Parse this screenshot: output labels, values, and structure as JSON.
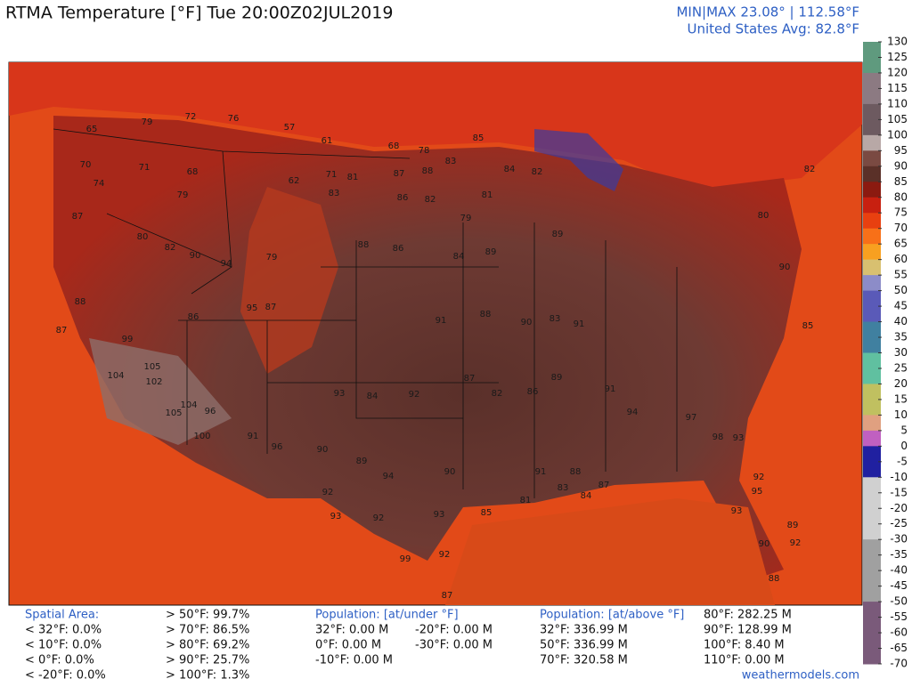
{
  "header": {
    "title": "RTMA Temperature [°F]  Tue 20:00Z02JUL2019",
    "minmax": "MIN|MAX 23.08° | 112.58°F",
    "average": "United States Avg: 82.8°F"
  },
  "colorbar": {
    "ticks": [
      130,
      125,
      120,
      115,
      110,
      105,
      100,
      95,
      90,
      85,
      80,
      75,
      70,
      65,
      60,
      55,
      50,
      45,
      40,
      35,
      30,
      25,
      20,
      15,
      10,
      5,
      0,
      -5,
      -10,
      -15,
      -20,
      -25,
      -30,
      -35,
      -40,
      -45,
      -50,
      -55,
      -60,
      -65,
      -70
    ]
  },
  "map_labels": [
    79,
    72,
    76,
    57,
    61,
    68,
    78,
    85,
    65,
    70,
    71,
    68,
    62,
    71,
    81,
    87,
    88,
    83,
    84,
    82,
    74,
    87,
    79,
    83,
    86,
    82,
    81,
    79,
    80,
    82,
    90,
    94,
    79,
    88,
    86,
    84,
    89,
    89,
    88,
    87,
    86,
    95,
    87,
    91,
    88,
    90,
    83,
    91,
    99,
    105,
    104,
    102,
    105,
    104,
    96,
    100,
    93,
    84,
    92,
    87,
    82,
    86,
    89,
    91,
    94,
    97,
    98,
    93,
    89,
    92,
    90,
    88,
    85,
    90,
    80,
    82,
    91,
    96,
    90,
    89,
    94,
    90,
    91,
    88,
    83,
    84,
    87,
    92,
    93,
    92,
    93,
    85,
    81,
    99,
    92,
    87,
    93,
    95,
    92
  ],
  "stats": {
    "spatial": {
      "heading": "Spatial Area:",
      "below": [
        "< 32°F: 0.0%",
        "< 10°F: 0.0%",
        "< 0°F: 0.0%",
        "< -20°F: 0.0%"
      ],
      "above": [
        "> 50°F: 99.7%",
        "> 70°F: 86.5%",
        "> 80°F: 69.2%",
        "> 90°F: 25.7%",
        "> 100°F: 1.3%"
      ]
    },
    "pop_under": {
      "heading": "Population: [at/under °F]",
      "col1": [
        "32°F: 0.00 M",
        "0°F: 0.00 M",
        "-10°F: 0.00 M"
      ],
      "col2": [
        "-20°F: 0.00 M",
        "-30°F: 0.00 M"
      ]
    },
    "pop_above": {
      "heading": "Population: [at/above °F]",
      "col1": [
        "32°F: 336.99 M",
        "50°F: 336.99 M",
        "70°F: 320.58 M"
      ],
      "col2": [
        "80°F: 282.25 M",
        "90°F: 128.99 M",
        "100°F: 8.40 M",
        "110°F: 0.00 M"
      ]
    }
  },
  "footer": "weathermodels.com"
}
